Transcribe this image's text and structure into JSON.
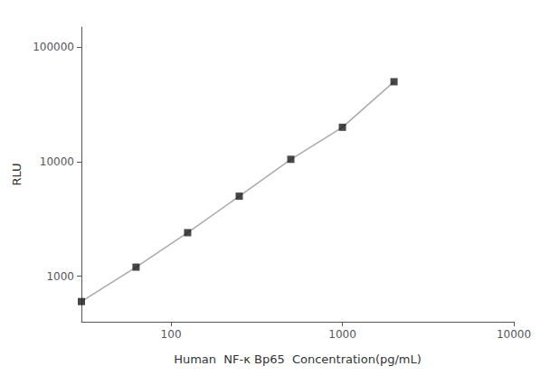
{
  "chart_data": {
    "type": "line",
    "x": [
      30,
      62.5,
      125,
      250,
      500,
      1000,
      2000
    ],
    "series": [
      {
        "type": "line",
        "color": "#aaaaaa",
        "values": [
          600,
          1200,
          2400,
          5000,
          10500,
          20000,
          50000
        ]
      },
      {
        "type": "scatter",
        "color": "#1a1a1a",
        "marker": "square",
        "values": [
          600,
          1200,
          2400,
          5000,
          10500,
          20000,
          50000
        ]
      }
    ],
    "xlabel": "Human  NF-κ Bp65  Concentration(pg/mL)",
    "ylabel": "RLU",
    "xlim": [
      30,
      10000
    ],
    "ylim": [
      400,
      150000
    ],
    "xticks": [
      100,
      1000,
      10000
    ],
    "yticks": [
      1000,
      10000,
      100000
    ],
    "log": true,
    "grid": false
  }
}
